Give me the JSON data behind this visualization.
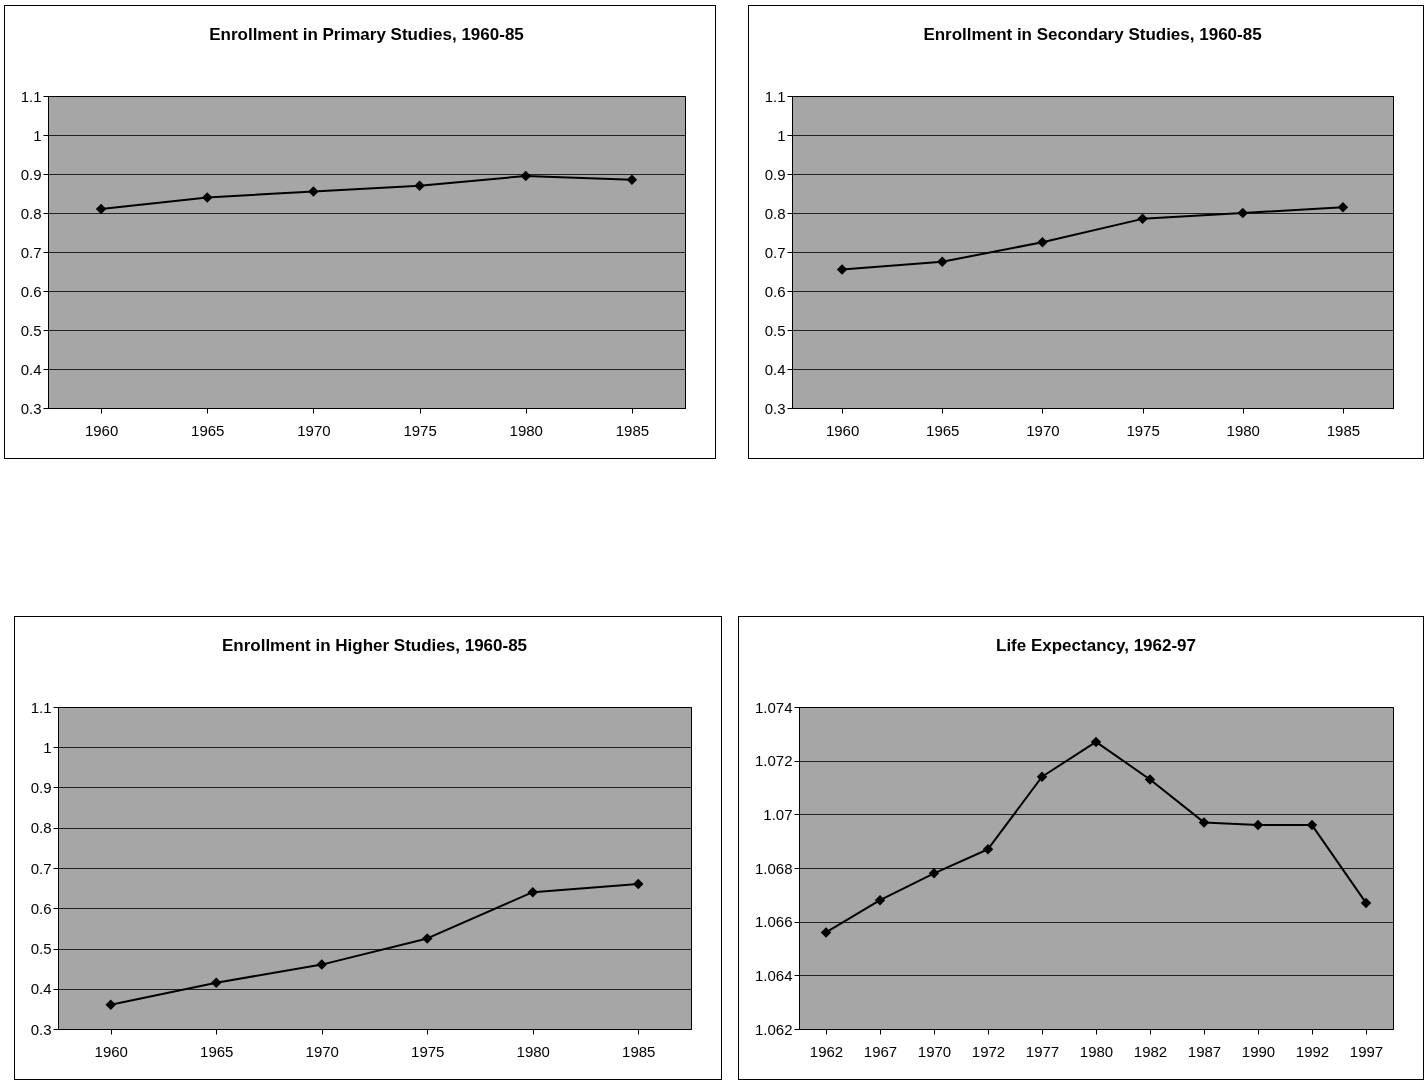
{
  "chart_data": [
    {
      "type": "line",
      "title": "Enrollment in Primary Studies, 1960-85",
      "categories": [
        "1960",
        "1965",
        "1970",
        "1975",
        "1980",
        "1985"
      ],
      "values": [
        0.81,
        0.84,
        0.855,
        0.87,
        0.895,
        0.885
      ],
      "color": "#000000",
      "ylim": [
        0.3,
        1.1
      ],
      "yticks": [
        0.3,
        0.4,
        0.5,
        0.6,
        0.7,
        0.8,
        0.9,
        1,
        1.1
      ],
      "grid": "y",
      "marker": "diamond"
    },
    {
      "type": "line",
      "title": "Enrollment in Secondary Studies, 1960-85",
      "categories": [
        "1960",
        "1965",
        "1970",
        "1975",
        "1980",
        "1985"
      ],
      "values": [
        0.655,
        0.675,
        0.725,
        0.785,
        0.8,
        0.815
      ],
      "color": "#000000",
      "ylim": [
        0.3,
        1.1
      ],
      "yticks": [
        0.3,
        0.4,
        0.5,
        0.6,
        0.7,
        0.8,
        0.9,
        1,
        1.1
      ],
      "grid": "y",
      "marker": "diamond"
    },
    {
      "type": "line",
      "title": "Enrollment in Higher Studies, 1960-85",
      "categories": [
        "1960",
        "1965",
        "1970",
        "1975",
        "1980",
        "1985"
      ],
      "values": [
        0.36,
        0.415,
        0.46,
        0.525,
        0.64,
        0.66
      ],
      "color": "#000000",
      "ylim": [
        0.3,
        1.1
      ],
      "yticks": [
        0.3,
        0.4,
        0.5,
        0.6,
        0.7,
        0.8,
        0.9,
        1,
        1.1
      ],
      "grid": "y",
      "marker": "diamond"
    },
    {
      "type": "line",
      "title": "Life Expectancy, 1962-97",
      "categories": [
        "1962",
        "1967",
        "1970",
        "1972",
        "1977",
        "1980",
        "1982",
        "1987",
        "1990",
        "1992",
        "1997"
      ],
      "values": [
        1.0656,
        1.0668,
        1.0678,
        1.0687,
        1.0714,
        1.0727,
        1.0713,
        1.0697,
        1.0696,
        1.0696,
        1.0667
      ],
      "color": "#000000",
      "ylim": [
        1.062,
        1.074
      ],
      "yticks": [
        1.062,
        1.064,
        1.066,
        1.068,
        1.07,
        1.072,
        1.074
      ],
      "grid": "y",
      "marker": "diamond"
    }
  ]
}
